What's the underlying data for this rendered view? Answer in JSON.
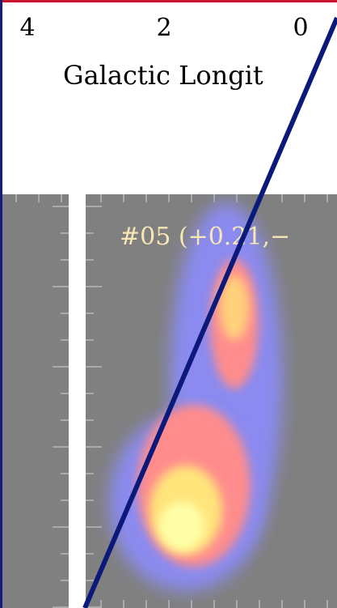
{
  "axis": {
    "ticks": [
      "4",
      "2",
      "0"
    ],
    "label": "Galactic Longit"
  },
  "panel": {
    "label": "#05 (+0.21,−"
  }
}
